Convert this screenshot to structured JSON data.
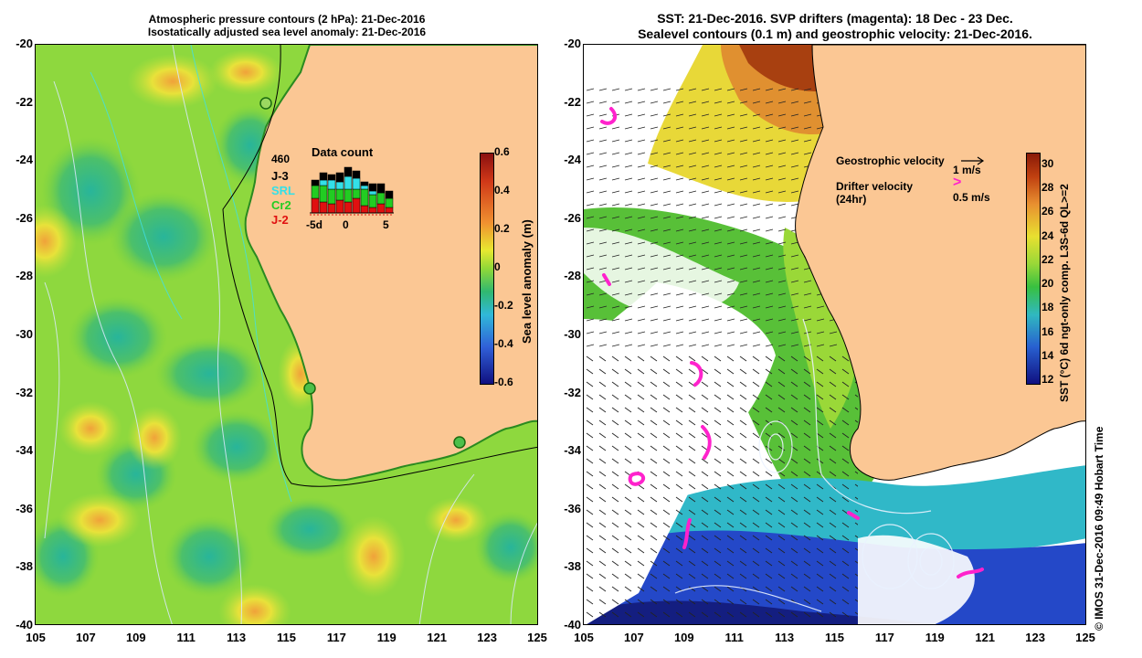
{
  "left_panel": {
    "title_line1": "Atmospheric pressure contours (2 hPa): 21-Dec-2016",
    "title_line2": "Isostatically adjusted sea level anomaly: 21-Dec-2016",
    "y_ticks": [
      "-20",
      "-22",
      "-24",
      "-26",
      "-28",
      "-30",
      "-32",
      "-34",
      "-36",
      "-38",
      "-40"
    ],
    "x_ticks": [
      "105",
      "107",
      "109",
      "111",
      "113",
      "115",
      "117",
      "119",
      "121",
      "123",
      "125"
    ],
    "colorbar_label": "Sea level anomaly (m)",
    "colorbar_ticks": [
      "0.6",
      "0.4",
      "0.2",
      "0",
      "-0.2",
      "-0.4",
      "-0.6"
    ],
    "data_count": {
      "title": "Data count",
      "total": "460",
      "sources": [
        {
          "name": "J-3",
          "color": "#000000"
        },
        {
          "name": "SRL",
          "color": "#33e0e8"
        },
        {
          "name": "Cr2",
          "color": "#22cc22"
        },
        {
          "name": "J-2",
          "color": "#e01010"
        }
      ],
      "x_labels": [
        "-5d",
        "0",
        "5"
      ]
    }
  },
  "right_panel": {
    "title_line1": "SST: 21-Dec-2016. SVP drifters (magenta): 18 Dec - 23 Dec.",
    "title_line2": "Sealevel contours (0.1 m) and geostrophic velocity: 21-Dec-2016.",
    "y_ticks": [
      "-20",
      "-22",
      "-24",
      "-26",
      "-28",
      "-30",
      "-32",
      "-34",
      "-36",
      "-38",
      "-40"
    ],
    "x_ticks": [
      "105",
      "107",
      "109",
      "111",
      "113",
      "115",
      "117",
      "119",
      "121",
      "123",
      "125"
    ],
    "colorbar_label": "SST (°C) 6d ngt-only comp. L3S-6d QL>=2",
    "colorbar_ticks": [
      "30",
      "28",
      "26",
      "24",
      "22",
      "20",
      "18",
      "16",
      "14",
      "12"
    ],
    "legend": {
      "geo_label": "Geostrophic velocity",
      "geo_unit": "1 m/s",
      "drifter_label": "Drifter velocity",
      "drifter_sub": "(24hr)",
      "drifter_symbol": ">",
      "drifter_unit": "0.5 m/s"
    }
  },
  "credit": "© IMOS 31-Dec-2016 09:49 Hobart Time",
  "colors": {
    "land": "#fbc794",
    "ocean_mid": "#7fd53a",
    "drifter": "#ff22cc"
  }
}
